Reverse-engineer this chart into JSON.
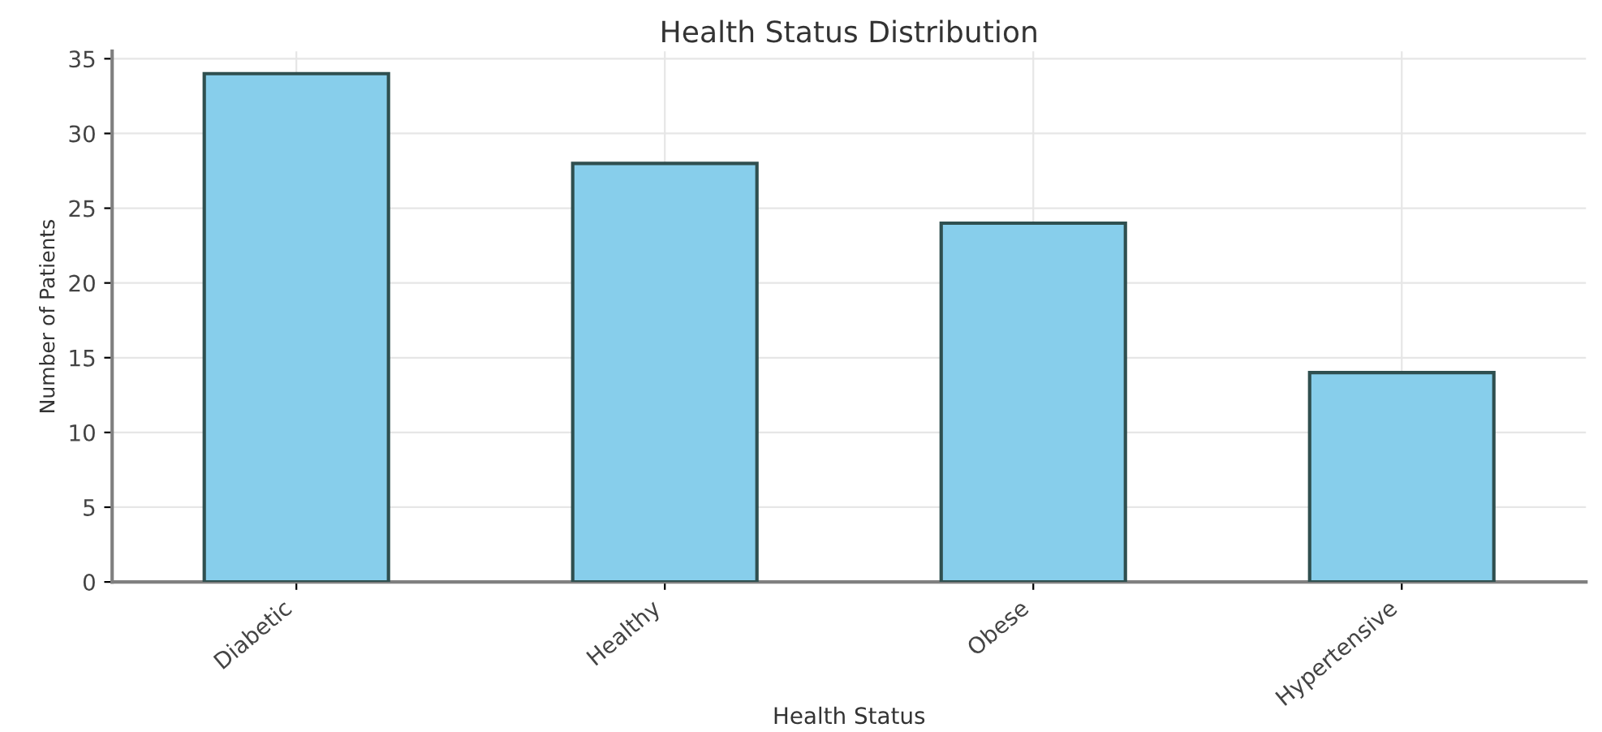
{
  "chart_data": {
    "type": "bar",
    "title": "Health Status Distribution",
    "xlabel": "Health Status",
    "ylabel": "Number of Patients",
    "categories": [
      "Diabetic",
      "Healthy",
      "Obese",
      "Hypertensive"
    ],
    "values": [
      34,
      28,
      24,
      14
    ],
    "color": "#87ceeb",
    "ylim": [
      0,
      35.5
    ],
    "yticks": [
      0,
      5,
      10,
      15,
      20,
      25,
      30,
      35
    ],
    "grid": true
  }
}
